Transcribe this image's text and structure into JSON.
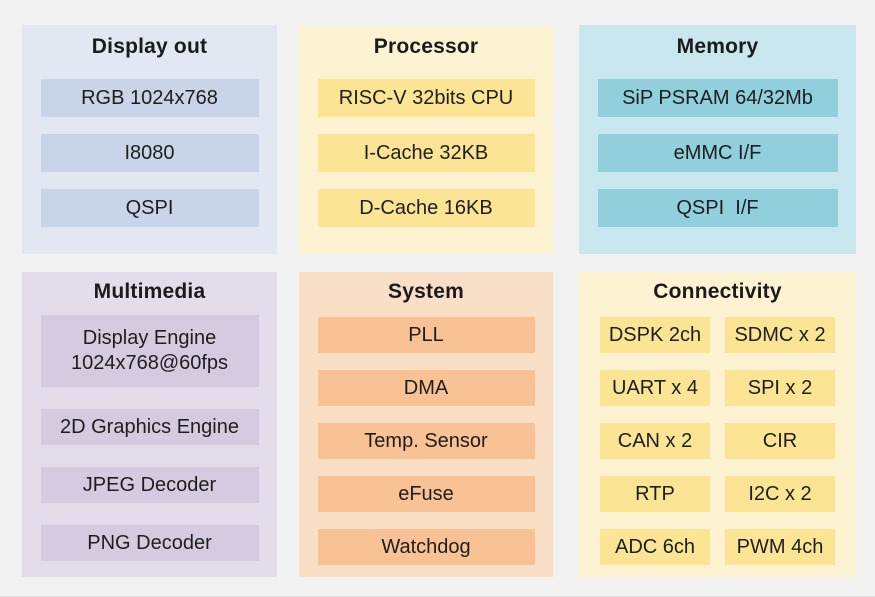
{
  "page": {
    "background_color": "#f2f2f3",
    "text_color": "#1e1e1e"
  },
  "panels": [
    {
      "id": "display-out",
      "title": "Display out",
      "panel_color": "#e2e7f1",
      "item_color": "#c8d4e8",
      "items": [
        "RGB 1024x768",
        "I8080",
        "QSPI"
      ]
    },
    {
      "id": "processor",
      "title": "Processor",
      "panel_color": "#fdf3d3",
      "item_color": "#fbe494",
      "items": [
        "RISC-V 32bits CPU",
        "I-Cache 32KB",
        "D-Cache 16KB"
      ]
    },
    {
      "id": "memory",
      "title": "Memory",
      "panel_color": "#c9e7ee",
      "item_color": "#92cfdd",
      "items": [
        "SiP PSRAM 64/32Mb",
        "eMMC I/F",
        "QSPI  I/F"
      ]
    },
    {
      "id": "multimedia",
      "title": "Multimedia",
      "panel_color": "#e3dcea",
      "item_color": "#d5cbe0",
      "items": [
        "Display Engine\n1024x768@60fps",
        "2D Graphics Engine",
        "JPEG Decoder",
        "PNG Decoder"
      ]
    },
    {
      "id": "system",
      "title": "System",
      "panel_color": "#fadfc7",
      "item_color": "#f8c295",
      "items": [
        "PLL",
        "DMA",
        "Temp. Sensor",
        "eFuse",
        "Watchdog"
      ]
    },
    {
      "id": "connectivity",
      "title": "Connectivity",
      "panel_color": "#fdf3d3",
      "item_color": "#fbe494",
      "items_left": [
        "DSPK 2ch",
        "UART x 4",
        "CAN x 2",
        "RTP",
        "ADC 6ch"
      ],
      "items_right": [
        "SDMC x 2",
        "SPI x 2",
        "CIR",
        "I2C x 2",
        "PWM 4ch"
      ]
    }
  ]
}
